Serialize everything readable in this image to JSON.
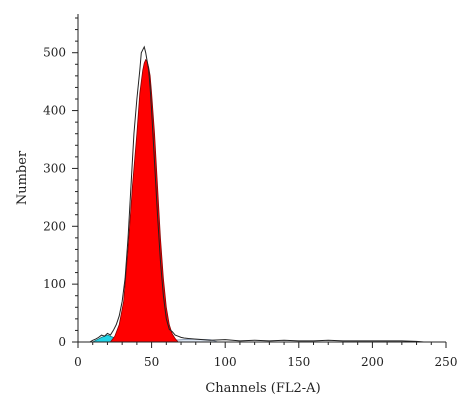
{
  "chart_data": {
    "type": "area",
    "title": "",
    "xlabel": "Channels (FL2-A)",
    "ylabel": "Number",
    "xlim": [
      0,
      250
    ],
    "ylim": [
      0,
      560
    ],
    "xticks": [
      0,
      50,
      100,
      150,
      200,
      250
    ],
    "yticks": [
      0,
      100,
      200,
      300,
      400,
      500
    ],
    "grid": false,
    "legend": "none",
    "colors": {
      "peak_fill": "#ff0000",
      "debris_fill": "#22d3e6",
      "background_fill": "#dde6f2",
      "histogram_line": "#222222"
    },
    "series": [
      {
        "role": "histogram",
        "x": [
          0,
          8,
          10,
          12,
          14,
          16,
          18,
          20,
          22,
          24,
          26,
          28,
          30,
          32,
          34,
          36,
          38,
          40,
          42,
          43,
          44,
          45,
          46,
          47,
          48,
          49,
          50,
          52,
          54,
          56,
          58,
          60,
          62,
          64,
          66,
          68,
          70,
          72,
          75,
          80,
          90,
          100,
          110,
          120,
          130,
          140,
          150,
          160,
          170,
          180,
          190,
          200,
          210,
          220,
          230,
          235
        ],
        "y": [
          0,
          0,
          3,
          5,
          8,
          12,
          10,
          15,
          12,
          20,
          30,
          45,
          70,
          110,
          180,
          270,
          360,
          420,
          470,
          500,
          505,
          510,
          500,
          485,
          470,
          440,
          400,
          310,
          220,
          140,
          80,
          40,
          22,
          18,
          12,
          10,
          8,
          7,
          6,
          5,
          3,
          4,
          2,
          3,
          2,
          3,
          2,
          2,
          3,
          2,
          2,
          2,
          2,
          2,
          1,
          0
        ]
      },
      {
        "role": "G1 peak",
        "x": [
          22,
          25,
          28,
          31,
          34,
          37,
          40,
          42,
          44,
          45,
          46,
          47,
          48,
          49,
          50,
          52,
          54,
          56,
          58,
          60,
          62,
          64,
          66,
          68
        ],
        "y": [
          0,
          10,
          30,
          70,
          160,
          270,
          360,
          430,
          470,
          482,
          488,
          485,
          475,
          460,
          430,
          360,
          270,
          180,
          110,
          60,
          30,
          14,
          6,
          0
        ]
      },
      {
        "role": "debris",
        "x": [
          10,
          13,
          16,
          18,
          20,
          22,
          24,
          27,
          29
        ],
        "y": [
          0,
          4,
          8,
          10,
          12,
          10,
          8,
          4,
          0
        ]
      },
      {
        "role": "background",
        "x": [
          50,
          60,
          70,
          80,
          90,
          95
        ],
        "y": [
          0,
          2,
          4,
          5,
          4,
          0
        ]
      }
    ]
  }
}
